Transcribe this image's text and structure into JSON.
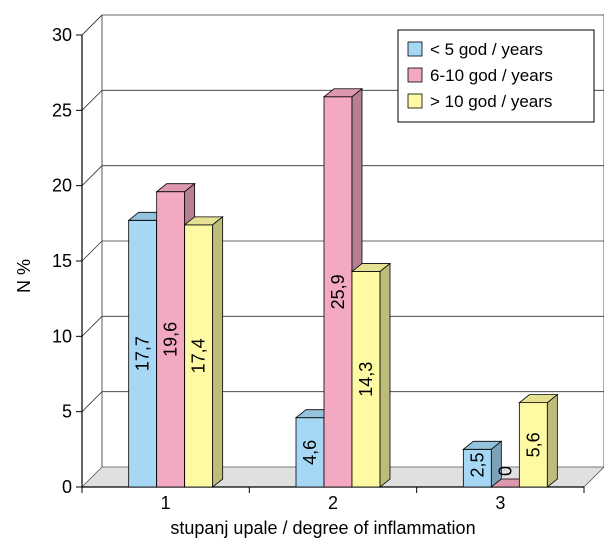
{
  "chart_data": {
    "type": "bar",
    "title": "",
    "xlabel": "stupanj upale / degree of inflammation",
    "ylabel": "N %",
    "ylim": [
      0,
      30
    ],
    "yticks": [
      0,
      5,
      10,
      15,
      20,
      25,
      30
    ],
    "categories": [
      "1",
      "2",
      "3"
    ],
    "grid": true,
    "legend_position": "top-right",
    "three_d": true,
    "series": [
      {
        "name": "< 5 god / years",
        "color": "#a6d8f5",
        "values": [
          17.7,
          4.6,
          2.5
        ],
        "labels": [
          "17,7",
          "4,6",
          "2,5"
        ]
      },
      {
        "name": "6-10 god / years",
        "color": "#f4a9c2",
        "values": [
          19.6,
          25.9,
          0
        ],
        "labels": [
          "19,6",
          "25,9",
          "0"
        ]
      },
      {
        "name": "> 10 god / years",
        "color": "#fdfaa3",
        "values": [
          17.4,
          14.3,
          5.6
        ],
        "labels": [
          "17,4",
          "14,3",
          "5,6"
        ]
      }
    ]
  }
}
